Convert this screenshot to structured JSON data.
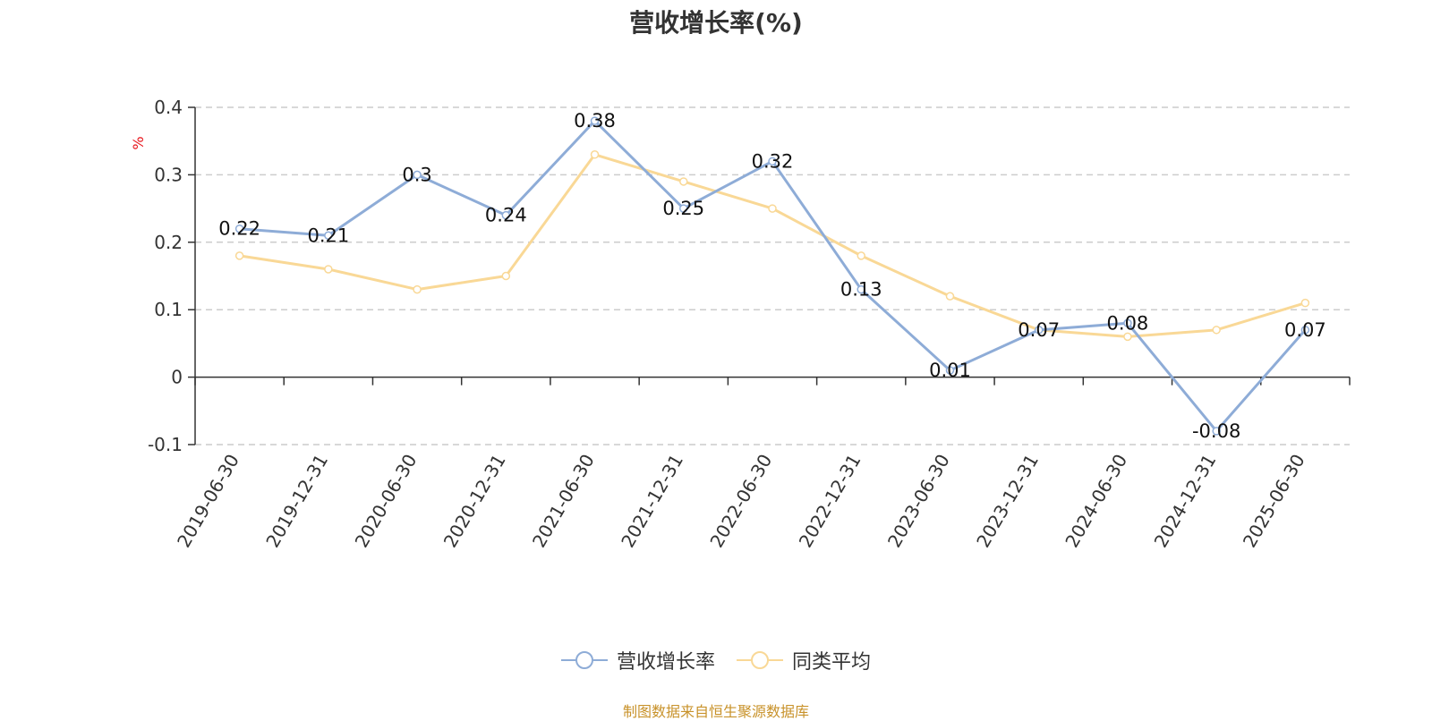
{
  "chart_data": {
    "type": "line",
    "title": "营收增长率(%)",
    "ylabel": "%",
    "xlabel": "",
    "categories": [
      "2019-06-30",
      "2019-12-31",
      "2020-06-30",
      "2020-12-31",
      "2021-06-30",
      "2021-12-31",
      "2022-06-30",
      "2022-12-31",
      "2023-06-30",
      "2023-12-31",
      "2024-06-30",
      "2024-12-31",
      "2025-06-30"
    ],
    "ylim": [
      -0.1,
      0.4
    ],
    "yticks": [
      -0.1,
      0,
      0.1,
      0.2,
      0.3,
      0.4
    ],
    "ytick_labels": [
      "-0.1",
      "0",
      "0.1",
      "0.2",
      "0.3",
      "0.4"
    ],
    "grid": true,
    "legend_position": "bottom",
    "series": [
      {
        "name": "营收增长率",
        "color": "#8eacd7",
        "values": [
          0.22,
          0.21,
          0.3,
          0.24,
          0.38,
          0.25,
          0.32,
          0.13,
          0.01,
          0.07,
          0.08,
          -0.08,
          0.07
        ],
        "labels": [
          "0.22",
          "0.21",
          "0.3",
          "0.24",
          "0.38",
          "0.25",
          "0.32",
          "0.13",
          "0.01",
          "0.07",
          "0.08",
          "-0.08",
          "0.07"
        ]
      },
      {
        "name": "同类平均",
        "color": "#f9d896",
        "values": [
          0.18,
          0.16,
          0.13,
          0.15,
          0.33,
          0.29,
          0.25,
          0.18,
          0.12,
          0.07,
          0.06,
          0.07,
          0.11
        ]
      }
    ]
  },
  "source_note": "制图数据来自恒生聚源数据库"
}
